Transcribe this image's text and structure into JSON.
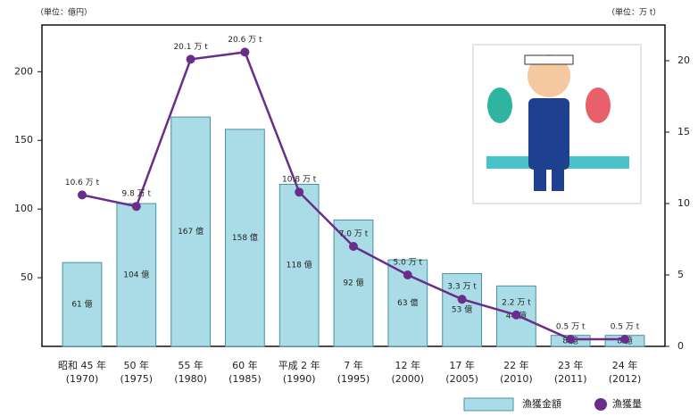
{
  "chart_data": {
    "type": "bar",
    "y_unit_label": "（単位：億円）",
    "y2_unit_label": "（単位：万 t）",
    "categories": [
      "昭和 45 年",
      "50 年",
      "55 年",
      "60 年",
      "平成 2 年",
      "7 年",
      "12 年",
      "17 年",
      "22 年",
      "23 年",
      "24 年"
    ],
    "category_years": [
      "(1970)",
      "(1975)",
      "(1980)",
      "(1985)",
      "(1990)",
      "(1995)",
      "(2000)",
      "(2005)",
      "(2010)",
      "(2011)",
      "(2012)"
    ],
    "series": [
      {
        "name": "漁獲金額",
        "type": "bar",
        "color": "#a9dce6",
        "axis": "y",
        "values": [
          61,
          104,
          167,
          158,
          118,
          92,
          63,
          53,
          44,
          8,
          8
        ],
        "value_labels": [
          "61 億",
          "104 億",
          "167 億",
          "158 億",
          "118 億",
          "92 億",
          "63 億",
          "53 億",
          "44 億",
          "8 億",
          "8 億"
        ]
      },
      {
        "name": "漁獲量",
        "type": "line",
        "color": "#6b2d8a",
        "axis": "y2",
        "values": [
          10.6,
          9.8,
          20.1,
          20.6,
          10.8,
          7.0,
          5.0,
          3.3,
          2.2,
          0.5,
          0.5
        ],
        "value_labels": [
          "10.6 万 t",
          "9.8 万 t",
          "20.1 万 t",
          "20.6 万 t",
          "10.8 万 t",
          "7.0 万 t",
          "5.0 万 t",
          "3.3 万 t",
          "2.2 万 t",
          "0.5 万 t",
          "0.5 万 t"
        ]
      }
    ],
    "ylim": [
      0,
      234
    ],
    "yticks": [
      50,
      100,
      150,
      200
    ],
    "y2lim": [
      0,
      22.5
    ],
    "y2ticks": [
      0,
      5,
      10,
      15,
      20
    ]
  }
}
